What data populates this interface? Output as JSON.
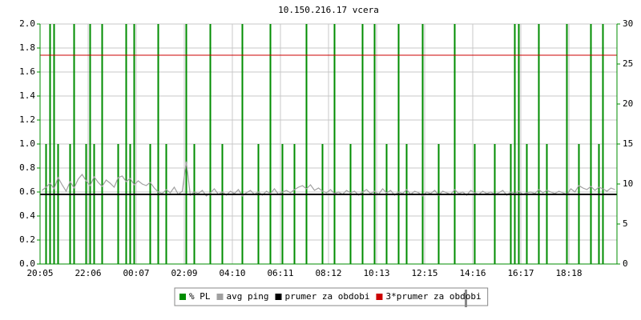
{
  "chart_data": {
    "type": "line",
    "title": "10.150.216.17 vcera",
    "categories": [
      "20:05",
      null,
      null,
      null,
      null,
      null,
      null,
      null,
      null,
      null,
      null,
      null,
      "22:06",
      null,
      null,
      null,
      null,
      null,
      null,
      null,
      null,
      null,
      null,
      null,
      "00:07",
      null,
      null,
      null,
      null,
      null,
      null,
      null,
      null,
      null,
      null,
      null,
      "02:09",
      null,
      null,
      null,
      null,
      null,
      null,
      null,
      null,
      null,
      null,
      null,
      "04:10",
      null,
      null,
      null,
      null,
      null,
      null,
      null,
      null,
      null,
      null,
      null,
      "06:11",
      null,
      null,
      null,
      null,
      null,
      null,
      null,
      null,
      null,
      null,
      null,
      "08:12",
      null,
      null,
      null,
      null,
      null,
      null,
      null,
      null,
      null,
      null,
      null,
      "10:13",
      null,
      null,
      null,
      null,
      null,
      null,
      null,
      null,
      null,
      null,
      null,
      "12:15",
      null,
      null,
      null,
      null,
      null,
      null,
      null,
      null,
      null,
      null,
      null,
      "14:16",
      null,
      null,
      null,
      null,
      null,
      null,
      null,
      null,
      null,
      null,
      null,
      "16:17",
      null,
      null,
      null,
      null,
      null,
      null,
      null,
      null,
      null,
      null,
      null,
      "18:18",
      null,
      null,
      null,
      null,
      null,
      null,
      null,
      null,
      null,
      null,
      null
    ],
    "series": [
      {
        "name": "% PL",
        "color": "#008c00",
        "kind": "spike",
        "axis": "y",
        "values": [
          0,
          1,
          2,
          2,
          1,
          0,
          0,
          1,
          2,
          0,
          0,
          1,
          2,
          1,
          0,
          2,
          0,
          0,
          0,
          1,
          0,
          2,
          1,
          2,
          0,
          0,
          0,
          1,
          0,
          2,
          0,
          1,
          0,
          0,
          0,
          0,
          2,
          0,
          1,
          0,
          0,
          0,
          2,
          0,
          0,
          1,
          0,
          0,
          0,
          0,
          2,
          0,
          0,
          0,
          1,
          0,
          0,
          2,
          0,
          0,
          1,
          0,
          0,
          1,
          0,
          0,
          2,
          0,
          0,
          0,
          1,
          0,
          0,
          2,
          0,
          0,
          0,
          1,
          0,
          0,
          2,
          0,
          0,
          2,
          0,
          0,
          1,
          0,
          0,
          2,
          0,
          1,
          0,
          0,
          0,
          2,
          0,
          0,
          0,
          1,
          0,
          0,
          0,
          2,
          0,
          0,
          0,
          0,
          1,
          0,
          0,
          0,
          0,
          1,
          0,
          0,
          0,
          1,
          2,
          2,
          0,
          1,
          0,
          0,
          2,
          0,
          1,
          0,
          0,
          0,
          0,
          2,
          0,
          0,
          1,
          0,
          0,
          2,
          0,
          1,
          2,
          0,
          0,
          0
        ]
      },
      {
        "name": "avg ping",
        "color": "#a0a0a0",
        "kind": "line",
        "axis": "y2",
        "values": [
          9.2,
          9.6,
          10.1,
          9.4,
          10.8,
          9.9,
          9.1,
          10.3,
          9.5,
          10.6,
          11.2,
          10.4,
          9.8,
          10.9,
          10.2,
          9.7,
          10.5,
          10.1,
          9.6,
          10.8,
          11.0,
          10.3,
          10.7,
          9.9,
          10.4,
          10.0,
          9.8,
          10.2,
          9.5,
          9.0,
          8.8,
          9.3,
          8.9,
          9.6,
          8.7,
          9.1,
          12.8,
          8.6,
          9.0,
          8.8,
          9.2,
          8.5,
          8.9,
          9.4,
          8.7,
          9.0,
          8.6,
          9.1,
          8.8,
          9.3,
          8.5,
          8.9,
          9.2,
          8.7,
          9.0,
          8.6,
          9.1,
          8.8,
          9.4,
          8.7,
          9.0,
          9.2,
          8.9,
          9.3,
          9.6,
          9.8,
          9.4,
          9.9,
          9.2,
          9.5,
          9.1,
          8.9,
          9.3,
          8.8,
          9.0,
          8.7,
          9.2,
          8.9,
          9.1,
          8.6,
          9.0,
          9.3,
          8.8,
          9.1,
          8.7,
          9.4,
          8.9,
          9.2,
          8.6,
          9.0,
          8.8,
          9.3,
          8.7,
          9.1,
          8.9,
          8.5,
          9.0,
          8.8,
          9.2,
          8.6,
          9.1,
          8.9,
          8.7,
          9.3,
          8.8,
          9.0,
          8.6,
          9.2,
          8.9,
          8.7,
          9.1,
          8.8,
          9.0,
          8.7,
          8.9,
          9.2,
          8.6,
          9.0,
          8.8,
          9.1,
          8.7,
          8.9,
          9.0,
          8.8,
          9.3,
          8.9,
          9.2,
          9.0,
          8.8,
          9.1,
          8.9,
          8.7,
          9.4,
          9.0,
          9.8,
          9.5,
          9.3,
          9.7,
          9.2,
          9.6,
          9.4,
          9.1,
          9.5,
          9.3
        ]
      },
      {
        "name": "prumer za obdobi",
        "color": "#000000",
        "kind": "hline",
        "axis": "y2",
        "value": 8.7
      },
      {
        "name": "3*prumer za obdobi",
        "color": "#cc0000",
        "kind": "hline",
        "axis": "y2",
        "value": 26.1
      }
    ],
    "ylim": [
      0,
      2
    ],
    "yticks": [
      {
        "value": 0,
        "label": "0.0"
      },
      0.2,
      0.4,
      0.6,
      0.8,
      {
        "value": 1,
        "label": "1.0"
      },
      1.2,
      1.4,
      1.6,
      1.8,
      {
        "value": 2,
        "label": "2.0"
      }
    ],
    "y2lim": [
      0,
      30
    ],
    "y2ticks": [
      0,
      5,
      10,
      15,
      20,
      25,
      30
    ],
    "grid": true,
    "legend": "bottom"
  }
}
